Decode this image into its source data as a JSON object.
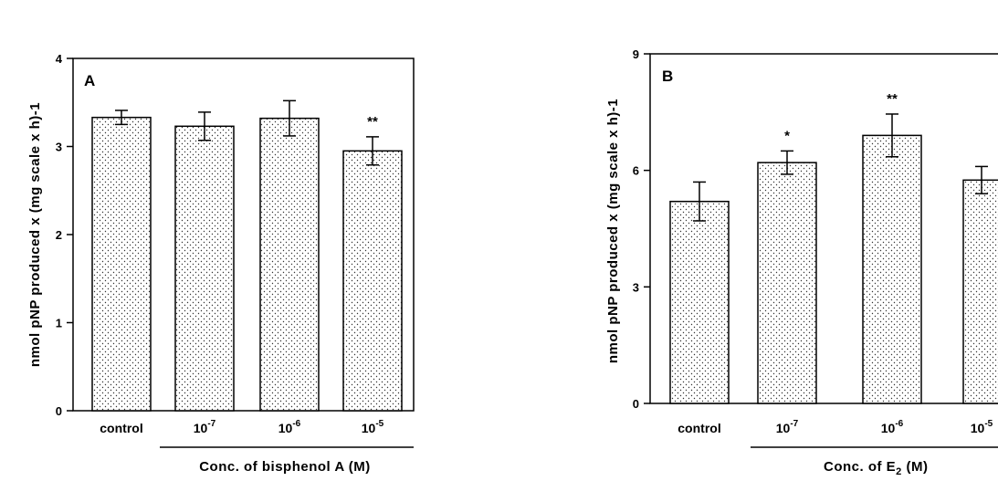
{
  "chart_data": [
    {
      "type": "bar",
      "panel_label": "A",
      "categories": [
        "control",
        "10",
        "10",
        "10"
      ],
      "category_exponents": [
        "",
        "-7",
        "-6",
        "-5"
      ],
      "values": [
        3.33,
        3.23,
        3.32,
        2.95
      ],
      "errors": [
        0.08,
        0.16,
        0.2,
        0.16
      ],
      "significance": [
        "",
        "",
        "",
        "**"
      ],
      "ylabel": "nmol pNP produced x (mg scale x h)-1",
      "xlabel_prefix": "Conc. of bisphenol A (M)",
      "xlabel_sub": "",
      "xlabel_suffix": "",
      "ylim": [
        0,
        4
      ],
      "yticks": [
        "0",
        "1",
        "2",
        "3",
        "4"
      ],
      "bar_fill": "stippled"
    },
    {
      "type": "bar",
      "panel_label": "B",
      "categories": [
        "control",
        "10",
        "10",
        "10"
      ],
      "category_exponents": [
        "",
        "-7",
        "-6",
        "-5"
      ],
      "values": [
        5.2,
        6.2,
        6.9,
        5.75
      ],
      "errors": [
        0.5,
        0.3,
        0.55,
        0.35
      ],
      "significance": [
        "",
        "*",
        "**",
        ""
      ],
      "ylabel": "nmol pNP produced x (mg scale x h)-1",
      "xlabel_prefix": "Conc. of  E",
      "xlabel_sub": "2",
      "xlabel_suffix": " (M)",
      "ylim": [
        0,
        9
      ],
      "yticks": [
        "0",
        "3",
        "6",
        "9"
      ],
      "bar_fill": "stippled"
    }
  ]
}
